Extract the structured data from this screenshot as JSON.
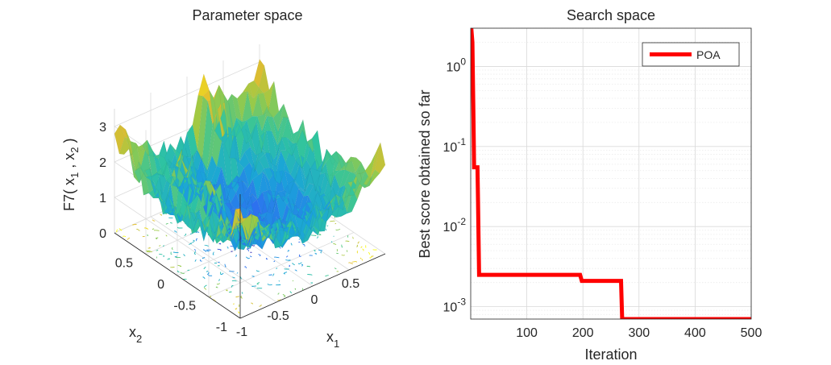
{
  "chart_data": [
    {
      "type": "surface",
      "title": "Parameter space",
      "xlabel": "x",
      "xlabel_sub": "1",
      "ylabel": "x",
      "ylabel_sub": "2",
      "zlabel_parts": [
        "F7( x",
        "1",
        " , x",
        "2",
        " )"
      ],
      "x_ticks": [
        "-1",
        "-0.5",
        "0",
        "0.5"
      ],
      "y_ticks": [
        "-1",
        "-0.5",
        "0",
        "0.5"
      ],
      "z_ticks": [
        "0",
        "1",
        "2",
        "3"
      ],
      "xlim": [
        -1,
        1
      ],
      "ylim": [
        -1,
        1
      ],
      "zlim": [
        0,
        3.5
      ],
      "colormap": [
        "#3e26a8",
        "#2f6bf2",
        "#1aa4d9",
        "#2fc4a0",
        "#9cca45",
        "#e3bb2f",
        "#f9fb15"
      ],
      "grid": true
    },
    {
      "type": "line",
      "title": "Search space",
      "xlabel": "Iteration",
      "ylabel": "Best score obtained so far",
      "yscale": "log",
      "xlim": [
        0,
        500
      ],
      "ylim": [
        0.0007,
        3
      ],
      "x_ticks": [
        100,
        200,
        300,
        400,
        500
      ],
      "y_ticks": [
        {
          "value": 1,
          "base": "10",
          "exp": "0"
        },
        {
          "value": 0.1,
          "base": "10",
          "exp": "-1"
        },
        {
          "value": 0.01,
          "base": "10",
          "exp": "-2"
        },
        {
          "value": 0.001,
          "base": "10",
          "exp": "-3"
        }
      ],
      "grid": true,
      "legend_position": "top-right",
      "series": [
        {
          "name": "POA",
          "color": "#ff0000",
          "points": [
            [
              1,
              3.0
            ],
            [
              3,
              2.0
            ],
            [
              5,
              0.2
            ],
            [
              6,
              0.055
            ],
            [
              12,
              0.055
            ],
            [
              13,
              0.023
            ],
            [
              15,
              0.0025
            ],
            [
              195,
              0.0025
            ],
            [
              198,
              0.0021
            ],
            [
              268,
              0.0021
            ],
            [
              270,
              0.0007
            ],
            [
              500,
              0.0007
            ]
          ]
        }
      ]
    }
  ]
}
